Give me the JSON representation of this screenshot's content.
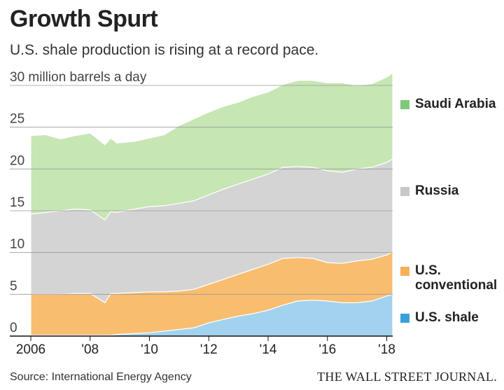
{
  "header": {
    "title": "Growth Spurt",
    "subtitle": "U.S. shale production is rising at a record pace."
  },
  "footer": {
    "source": "Source: International Energy Agency",
    "publisher": "THE WALL STREET JOURNAL."
  },
  "chart_data": {
    "type": "area",
    "stacked": true,
    "title": "Growth Spurt",
    "subtitle": "U.S. shale production is rising at a record pace.",
    "unit_label": "30 million barrels a day",
    "ylim": [
      0,
      30
    ],
    "xlim": [
      2006,
      2018.2
    ],
    "y_ticks": [
      0,
      5,
      10,
      15,
      20,
      25,
      30
    ],
    "y_tick_labels": [
      "0",
      "5",
      "10",
      "15",
      "20",
      "25",
      "30 million barrels a day"
    ],
    "x_ticks": [
      2006,
      2008,
      2010,
      2012,
      2014,
      2016,
      2018
    ],
    "x_tick_labels": [
      "2006",
      "'08",
      "'10",
      "'12",
      "'14",
      "'16",
      "'18"
    ],
    "grid": true,
    "legend_position": "right",
    "x": [
      2006.0,
      2006.5,
      2007.0,
      2007.5,
      2008.0,
      2008.5,
      2008.7,
      2008.9,
      2009.5,
      2010.0,
      2010.5,
      2011.0,
      2011.5,
      2012.0,
      2012.5,
      2013.0,
      2013.5,
      2014.0,
      2014.5,
      2015.0,
      2015.5,
      2016.0,
      2016.5,
      2017.0,
      2017.5,
      2018.0,
      2018.2
    ],
    "series": [
      {
        "name": "U.S. shale",
        "color": "#a3d2ee",
        "legend_color": "#3a9fd8",
        "values": [
          0.1,
          0.1,
          0.1,
          0.1,
          0.1,
          0.1,
          0.1,
          0.2,
          0.3,
          0.4,
          0.6,
          0.8,
          1.0,
          1.6,
          2.0,
          2.4,
          2.7,
          3.1,
          3.7,
          4.2,
          4.3,
          4.2,
          4.0,
          4.0,
          4.2,
          4.8,
          5.0
        ]
      },
      {
        "name": "U.S. conventional",
        "color": "#f8bd6f",
        "legend_color": "#f6b05a",
        "values": [
          4.9,
          4.9,
          4.9,
          5.0,
          5.0,
          3.9,
          5.0,
          4.9,
          4.9,
          4.9,
          4.7,
          4.6,
          4.6,
          4.6,
          4.8,
          5.0,
          5.3,
          5.5,
          5.6,
          5.2,
          5.0,
          4.6,
          4.7,
          5.0,
          5.0,
          4.9,
          5.1
        ]
      },
      {
        "name": "Russia",
        "color": "#d4d4d4",
        "legend_color": "#c7c7c7",
        "values": [
          9.6,
          9.8,
          10.0,
          10.1,
          10.0,
          9.9,
          9.8,
          9.7,
          10.0,
          10.2,
          10.3,
          10.5,
          10.6,
          10.7,
          10.8,
          10.8,
          10.8,
          10.8,
          10.9,
          10.9,
          10.9,
          11.0,
          10.9,
          11.0,
          11.0,
          11.1,
          11.1
        ]
      },
      {
        "name": "Saudi Arabia",
        "color": "#c6e6b4",
        "legend_color": "#7ec97a",
        "values": [
          9.4,
          9.3,
          8.6,
          8.8,
          9.2,
          9.0,
          8.8,
          8.3,
          8.1,
          8.2,
          8.5,
          9.3,
          9.8,
          9.9,
          9.9,
          9.8,
          9.9,
          9.8,
          9.9,
          10.3,
          10.4,
          10.5,
          10.7,
          10.0,
          10.0,
          10.2,
          10.3
        ]
      }
    ]
  }
}
